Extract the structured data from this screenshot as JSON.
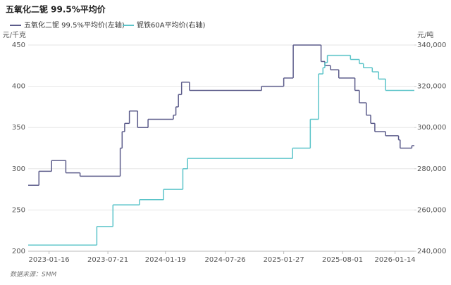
{
  "chart_data": {
    "type": "step-line",
    "title": "五氧化二铌 99.5%平均价",
    "y_label": "元/千克",
    "y2_label": "元/吨",
    "source": "数据来源：SMM",
    "xlim": [
      "2022-11-11",
      "2026-03-16"
    ],
    "xticks": [
      "2023-01-16",
      "2023-07-21",
      "2024-01-19",
      "2024-07-26",
      "2025-01-27",
      "2025-08-01",
      "2026-01-14"
    ],
    "ylim": [
      200,
      450
    ],
    "yticks": [
      200,
      250,
      300,
      350,
      400,
      450
    ],
    "y2lim": [
      240000,
      340000
    ],
    "y2ticks": [
      {
        "value": 240000,
        "label": "240,000"
      },
      {
        "value": 260000,
        "label": "260,000"
      },
      {
        "value": 280000,
        "label": "280,000"
      },
      {
        "value": 300000,
        "label": "300,000"
      },
      {
        "value": 320000,
        "label": "320,000"
      },
      {
        "value": 340000,
        "label": "340,000"
      }
    ],
    "grid": true,
    "series": [
      {
        "name": "五氧化二铌 99.5%平均价(左轴)",
        "color": "#5b5b8a",
        "axis": "y",
        "x": [
          "2022-11-11",
          "2022-12-15",
          "2023-01-24",
          "2023-03-10",
          "2023-04-24",
          "2023-08-29",
          "2023-09-04",
          "2023-09-12",
          "2023-09-27",
          "2023-10-23",
          "2023-11-25",
          "2024-02-13",
          "2024-02-21",
          "2024-02-29",
          "2024-03-10",
          "2024-03-14",
          "2024-04-04",
          "2024-11-18",
          "2025-01-27",
          "2025-02-26",
          "2025-05-25",
          "2025-06-06",
          "2025-06-24",
          "2025-07-20",
          "2025-09-09",
          "2025-09-23",
          "2025-10-15",
          "2025-10-29",
          "2025-11-11",
          "2025-12-15",
          "2026-01-25",
          "2026-01-30",
          "2026-03-08",
          "2026-03-16"
        ],
        "values": [
          280,
          297,
          310,
          295,
          291,
          325,
          345,
          355,
          370,
          350,
          360,
          365,
          375,
          390,
          405,
          405,
          395,
          400,
          410,
          450,
          430,
          425,
          420,
          410,
          395,
          380,
          365,
          355,
          345,
          340,
          335,
          325,
          328,
          328
        ]
      },
      {
        "name": "铌铁60A平均价(右轴)",
        "color": "#5cc4c9",
        "axis": "y2",
        "x": [
          "2022-11-11",
          "2023-06-16",
          "2023-08-06",
          "2023-10-29",
          "2024-01-13",
          "2024-03-14",
          "2024-03-29",
          "2025-02-24",
          "2025-04-21",
          "2025-05-17",
          "2025-05-31",
          "2025-06-06",
          "2025-06-14",
          "2025-08-26",
          "2025-09-23",
          "2025-10-06",
          "2025-11-03",
          "2025-11-23",
          "2025-12-15",
          "2026-03-16"
        ],
        "values": [
          243000,
          252000,
          262500,
          265000,
          270000,
          280000,
          285000,
          290000,
          304000,
          326000,
          329000,
          331500,
          335000,
          333000,
          331000,
          329000,
          327000,
          323500,
          318000,
          318000
        ]
      }
    ]
  }
}
